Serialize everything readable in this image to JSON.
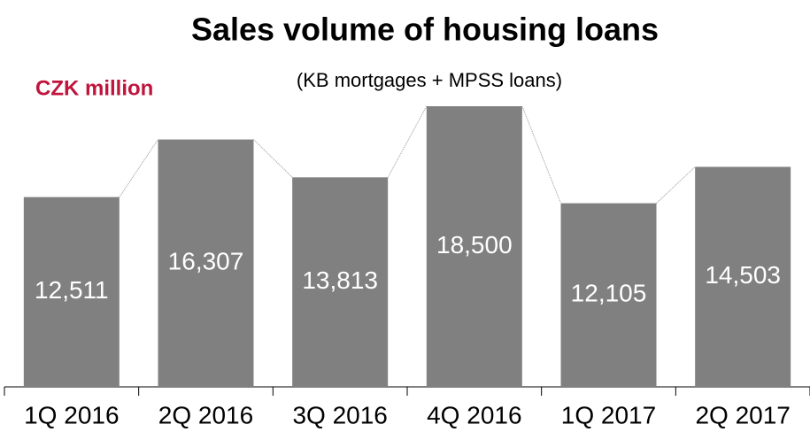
{
  "chart_data": {
    "type": "bar",
    "title": "Sales volume of housing loans",
    "subtitle": "(KB mortgages + MPSS loans)",
    "unit_label": "CZK million",
    "categories": [
      "1Q 2016",
      "2Q 2016",
      "3Q 2016",
      "4Q 2016",
      "1Q 2017",
      "2Q 2017"
    ],
    "values": [
      12511,
      16307,
      13813,
      18500,
      12105,
      14503
    ],
    "value_labels": [
      "12,511",
      "16,307",
      "13,813",
      "18,500",
      "12,105",
      "14,503"
    ],
    "color": "#808080"
  }
}
